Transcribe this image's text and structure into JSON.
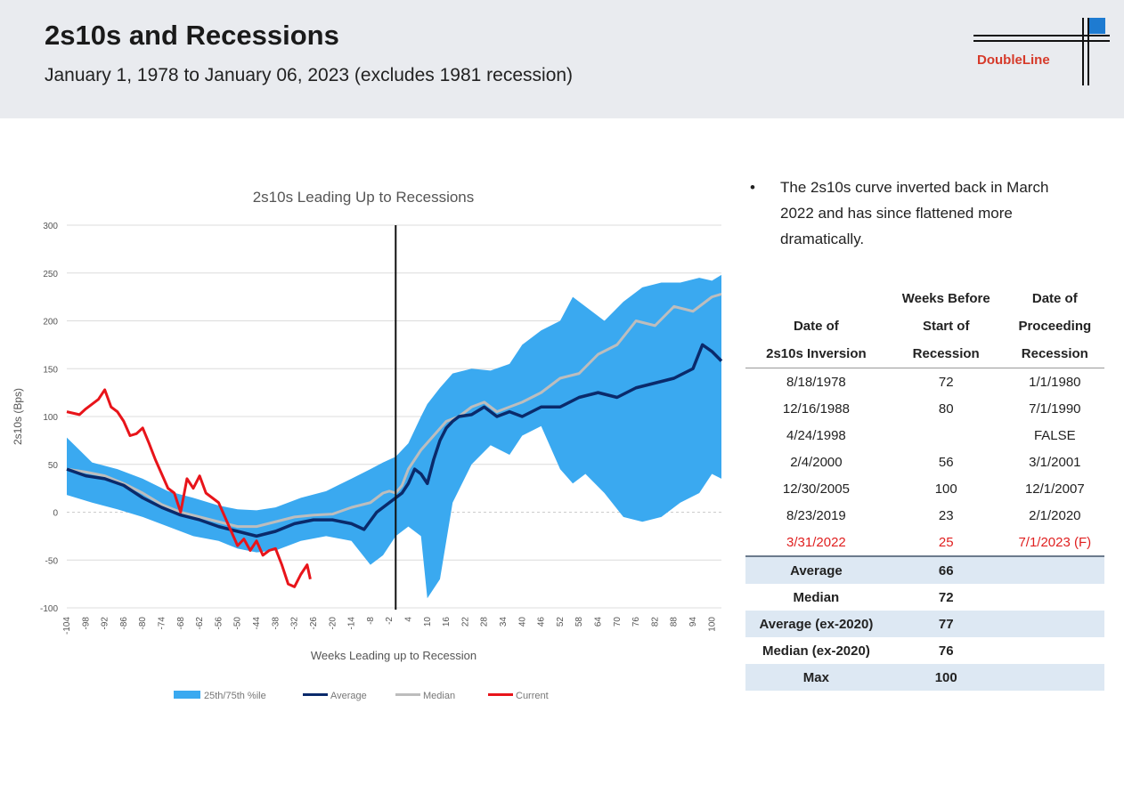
{
  "header": {
    "title": "2s10s and Recessions",
    "subtitle": "January 1, 1978 to January 06, 2023 (excludes 1981 recession)",
    "logo_text": "DoubleLine"
  },
  "colors": {
    "band": "#3aa9f0",
    "average": "#0a2a6b",
    "median": "#bdbdbd",
    "current": "#e8141a",
    "accent": "#1e7bd1"
  },
  "chart_data": {
    "type": "line",
    "title": "2s10s Leading Up to Recessions",
    "xlabel": "Weeks Leading up to Recession",
    "ylabel": "2s10s (Bps)",
    "ylim": [
      -100,
      300
    ],
    "xlim": [
      -104,
      103
    ],
    "yticks": [
      300,
      250,
      200,
      150,
      100,
      50,
      0,
      -50,
      -100
    ],
    "xticks": [
      -104,
      -98,
      -92,
      -86,
      -80,
      -74,
      -68,
      -62,
      -56,
      -50,
      -44,
      -38,
      -32,
      -26,
      -20,
      -14,
      -8,
      -2,
      4,
      10,
      16,
      22,
      28,
      34,
      40,
      46,
      52,
      58,
      64,
      70,
      76,
      82,
      88,
      94,
      100
    ],
    "vline_x": 0,
    "legend": [
      "25th/75th %ile",
      "Average",
      "Median",
      "Current"
    ],
    "legend_position": "bottom",
    "grid": true,
    "band": {
      "name": "25th/75th %ile",
      "x": [
        -104,
        -96,
        -88,
        -80,
        -72,
        -64,
        -56,
        -50,
        -44,
        -38,
        -30,
        -22,
        -14,
        -8,
        -4,
        0,
        4,
        8,
        10,
        14,
        18,
        24,
        30,
        36,
        40,
        46,
        52,
        56,
        60,
        66,
        72,
        78,
        84,
        90,
        96,
        100,
        103
      ],
      "upper": [
        78,
        52,
        45,
        35,
        22,
        15,
        7,
        3,
        2,
        5,
        15,
        22,
        35,
        45,
        52,
        58,
        72,
        100,
        113,
        130,
        145,
        150,
        148,
        155,
        175,
        190,
        200,
        225,
        215,
        200,
        220,
        235,
        240,
        240,
        245,
        242,
        248
      ],
      "lower": [
        18,
        10,
        3,
        -5,
        -15,
        -25,
        -30,
        -38,
        -42,
        -40,
        -30,
        -25,
        -30,
        -55,
        -45,
        -25,
        -15,
        -25,
        -90,
        -70,
        10,
        50,
        70,
        60,
        80,
        90,
        45,
        30,
        40,
        20,
        -5,
        -10,
        -5,
        10,
        20,
        40,
        35
      ]
    },
    "series": [
      {
        "name": "Average",
        "x": [
          -104,
          -98,
          -92,
          -86,
          -80,
          -74,
          -68,
          -62,
          -56,
          -50,
          -44,
          -38,
          -32,
          -26,
          -20,
          -14,
          -10,
          -6,
          -4,
          -2,
          0,
          2,
          4,
          6,
          8,
          10,
          12,
          14,
          16,
          18,
          20,
          24,
          28,
          32,
          36,
          40,
          46,
          52,
          58,
          64,
          70,
          76,
          82,
          88,
          94,
          97,
          100,
          103
        ],
        "values": [
          45,
          38,
          35,
          28,
          15,
          5,
          -3,
          -8,
          -15,
          -20,
          -25,
          -20,
          -12,
          -8,
          -8,
          -12,
          -18,
          0,
          5,
          10,
          15,
          20,
          30,
          45,
          40,
          30,
          55,
          75,
          88,
          95,
          100,
          102,
          110,
          100,
          105,
          100,
          110,
          110,
          120,
          125,
          120,
          130,
          135,
          140,
          150,
          175,
          168,
          158
        ]
      },
      {
        "name": "Median",
        "x": [
          -104,
          -98,
          -92,
          -86,
          -80,
          -74,
          -68,
          -62,
          -56,
          -50,
          -44,
          -38,
          -32,
          -26,
          -20,
          -14,
          -8,
          -4,
          -2,
          0,
          2,
          4,
          6,
          8,
          12,
          16,
          20,
          24,
          28,
          32,
          36,
          40,
          46,
          52,
          58,
          64,
          70,
          76,
          82,
          88,
          94,
          100,
          103
        ],
        "values": [
          45,
          42,
          38,
          30,
          20,
          8,
          0,
          -5,
          -10,
          -15,
          -15,
          -10,
          -5,
          -3,
          -2,
          5,
          10,
          20,
          22,
          20,
          28,
          45,
          55,
          65,
          80,
          95,
          100,
          110,
          115,
          105,
          110,
          115,
          125,
          140,
          145,
          165,
          175,
          200,
          195,
          215,
          210,
          225,
          228
        ]
      },
      {
        "name": "Current",
        "x": [
          -104,
          -100,
          -98,
          -94,
          -92,
          -90,
          -88,
          -86,
          -84,
          -82,
          -80,
          -78,
          -76,
          -74,
          -72,
          -70,
          -68,
          -66,
          -64,
          -62,
          -60,
          -58,
          -56,
          -54,
          -52,
          -50,
          -48,
          -46,
          -44,
          -42,
          -40,
          -38,
          -36,
          -34,
          -32,
          -30,
          -28,
          -27
        ],
        "values": [
          105,
          102,
          108,
          118,
          128,
          110,
          105,
          95,
          80,
          82,
          88,
          72,
          55,
          40,
          25,
          20,
          0,
          35,
          25,
          38,
          20,
          15,
          10,
          -5,
          -20,
          -35,
          -28,
          -40,
          -30,
          -45,
          -40,
          -38,
          -55,
          -75,
          -78,
          -65,
          -55,
          -70
        ]
      }
    ]
  },
  "bullet": {
    "dot": "•",
    "text": "The 2s10s curve inverted back in March 2022 and has since flattened more dramatically."
  },
  "table": {
    "headers": [
      "Date of\n2s10s Inversion",
      "Weeks Before\nStart of\nRecession",
      "Date of\nProceeding\nRecession"
    ],
    "rows": [
      [
        "8/18/1978",
        "72",
        "1/1/1980"
      ],
      [
        "12/16/1988",
        "80",
        "7/1/1990"
      ],
      [
        "4/24/1998",
        "",
        "FALSE"
      ],
      [
        "2/4/2000",
        "56",
        "3/1/2001"
      ],
      [
        "12/30/2005",
        "100",
        "12/1/2007"
      ],
      [
        "8/23/2019",
        "23",
        "2/1/2020"
      ],
      [
        "3/31/2022",
        "25",
        "7/1/2023 (F)"
      ]
    ],
    "stats": [
      [
        "Average",
        "66"
      ],
      [
        "Median",
        "72"
      ],
      [
        "Average (ex-2020)",
        "77"
      ],
      [
        "Median (ex-2020)",
        "76"
      ],
      [
        "Max",
        "100"
      ]
    ]
  }
}
